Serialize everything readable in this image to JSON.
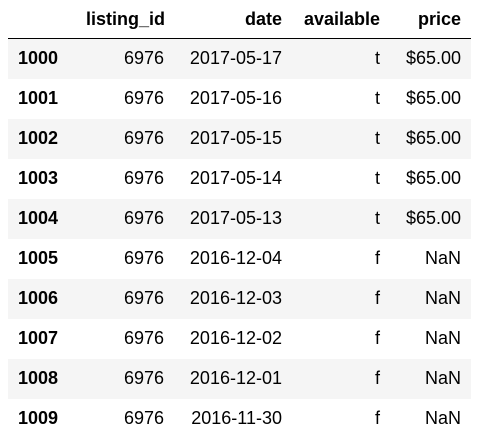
{
  "table": {
    "columns": [
      "",
      "listing_id",
      "date",
      "available",
      "price"
    ],
    "rows": [
      {
        "index": "1000",
        "listing_id": "6976",
        "date": "2017-05-17",
        "available": "t",
        "price": "$65.00"
      },
      {
        "index": "1001",
        "listing_id": "6976",
        "date": "2017-05-16",
        "available": "t",
        "price": "$65.00"
      },
      {
        "index": "1002",
        "listing_id": "6976",
        "date": "2017-05-15",
        "available": "t",
        "price": "$65.00"
      },
      {
        "index": "1003",
        "listing_id": "6976",
        "date": "2017-05-14",
        "available": "t",
        "price": "$65.00"
      },
      {
        "index": "1004",
        "listing_id": "6976",
        "date": "2017-05-13",
        "available": "t",
        "price": "$65.00"
      },
      {
        "index": "1005",
        "listing_id": "6976",
        "date": "2016-12-04",
        "available": "f",
        "price": "NaN"
      },
      {
        "index": "1006",
        "listing_id": "6976",
        "date": "2016-12-03",
        "available": "f",
        "price": "NaN"
      },
      {
        "index": "1007",
        "listing_id": "6976",
        "date": "2016-12-02",
        "available": "f",
        "price": "NaN"
      },
      {
        "index": "1008",
        "listing_id": "6976",
        "date": "2016-12-01",
        "available": "f",
        "price": "NaN"
      },
      {
        "index": "1009",
        "listing_id": "6976",
        "date": "2016-11-30",
        "available": "f",
        "price": "NaN"
      }
    ]
  },
  "colors": {
    "stripe": "#f5f5f5",
    "text": "#000000",
    "header_border": "#000000"
  }
}
